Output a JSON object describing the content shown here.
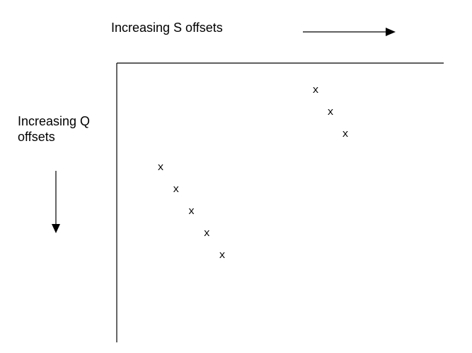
{
  "labels": {
    "s_axis": "Increasing S offsets",
    "q_axis_line1": "Increasing Q",
    "q_axis_line2": "offsets"
  },
  "marker_glyph": "x",
  "groups": [
    {
      "marks": 3
    },
    {
      "marks": 5
    }
  ],
  "colors": {
    "ink": "#000000",
    "background": "#ffffff"
  }
}
